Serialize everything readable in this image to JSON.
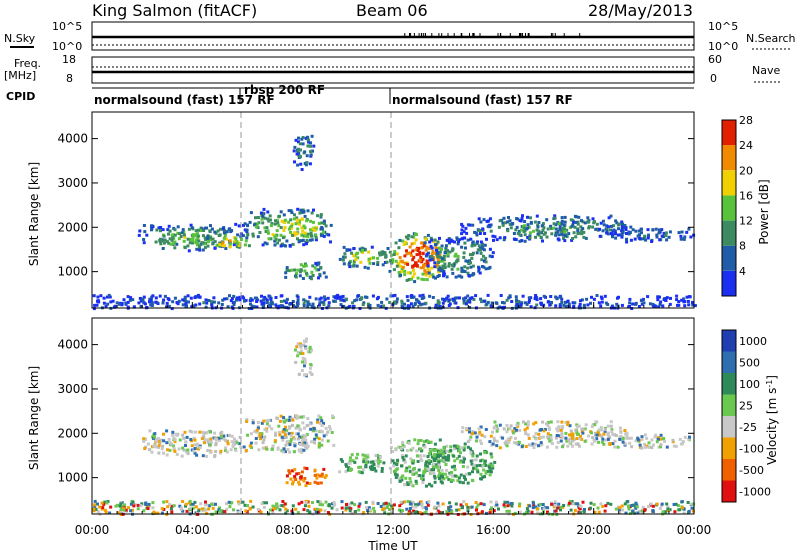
{
  "header": {
    "station": "King Salmon (fitACF)",
    "beam": "Beam 06",
    "date": "28/May/2013"
  },
  "strips": {
    "nsky_label": "N.Sky",
    "nsearch_label": "N.Search",
    "nsky_ticks": [
      "10^5",
      "10^0"
    ],
    "nsearch_ticks": [
      "10^5",
      "10^0"
    ],
    "freq_label": "Freq.",
    "freq_unit": "[MHz]",
    "freq_ticks": [
      "18",
      "8"
    ],
    "nave_label": "Nave",
    "nave_ticks": [
      "60",
      "0"
    ],
    "cpid_label": "CPID",
    "cpid_segments": [
      {
        "label": "normalsound (fast) 157 RF",
        "start_hour": 0.0
      },
      {
        "label": "rbsp 200 RF",
        "start_hour": 6.0
      },
      {
        "label": "normalsound (fast) 157 RF",
        "start_hour": 11.9
      }
    ]
  },
  "chart_data": [
    {
      "type": "heatmap",
      "panel": "power",
      "ylabel": "Slant Range [km]",
      "yticks": [
        1000,
        2000,
        3000,
        4000
      ],
      "ylim": [
        180,
        4600
      ],
      "xlim": [
        0,
        24
      ],
      "colorbar_label": "Power [dB]",
      "colorbar_ticks": [
        "4",
        "8",
        "12",
        "16",
        "20",
        "24",
        "28"
      ],
      "colors": [
        "#1b2ff0",
        "#1f5ca8",
        "#3c8a60",
        "#58c23a",
        "#f0d000",
        "#f08a00",
        "#e02000"
      ],
      "features": [
        {
          "hours": [
            1.8,
            6.0
          ],
          "range_km": [
            1500,
            2100
          ],
          "level": 0.4
        },
        {
          "hours": [
            4.3,
            6.4
          ],
          "range_km": [
            1550,
            1850
          ],
          "level": 0.65
        },
        {
          "hours": [
            6.0,
            9.6
          ],
          "range_km": [
            1600,
            2450
          ],
          "level": 0.5
        },
        {
          "hours": [
            8.0,
            8.8
          ],
          "range_km": [
            3300,
            4200
          ],
          "level": 0.25
        },
        {
          "hours": [
            7.6,
            9.3
          ],
          "range_km": [
            850,
            1250
          ],
          "level": 0.45
        },
        {
          "hours": [
            9.8,
            11.8
          ],
          "range_km": [
            1100,
            1600
          ],
          "level": 0.5
        },
        {
          "hours": [
            11.8,
            14.2
          ],
          "range_km": [
            800,
            1900
          ],
          "level": 0.85
        },
        {
          "hours": [
            13.2,
            16.0
          ],
          "range_km": [
            900,
            1800
          ],
          "level": 0.35
        },
        {
          "hours": [
            14.6,
            21.5
          ],
          "range_km": [
            1700,
            2300
          ],
          "level": 0.3
        },
        {
          "hours": [
            20.5,
            24.0
          ],
          "range_km": [
            1700,
            2000
          ],
          "level": 0.2
        },
        {
          "hours": [
            0.0,
            24.0
          ],
          "range_km": [
            200,
            500
          ],
          "level": 0.2
        }
      ]
    },
    {
      "type": "heatmap",
      "panel": "velocity",
      "ylabel": "Slant Range [km]",
      "yticks": [
        1000,
        2000,
        3000,
        4000
      ],
      "ylim": [
        180,
        4600
      ],
      "xlim": [
        0,
        24
      ],
      "xlabel": "Time UT",
      "xticks": [
        "00:00",
        "04:00",
        "08:00",
        "12:00",
        "16:00",
        "20:00",
        "00:00"
      ],
      "colorbar_label": "Velocity [m s^-1]",
      "colorbar_ticks": [
        "1000",
        "500",
        "100",
        "25",
        "-25",
        "-100",
        "-500",
        "-1000"
      ],
      "colors": [
        "#1f3fb0",
        "#2f6fb0",
        "#2f8a5a",
        "#6ac850",
        "#c8c8c8",
        "#f0a000",
        "#f06000",
        "#e01010"
      ],
      "features": [
        {
          "hours": [
            1.8,
            6.0
          ],
          "range_km": [
            1500,
            2100
          ],
          "class": "gray"
        },
        {
          "hours": [
            6.0,
            9.6
          ],
          "range_km": [
            1600,
            2450
          ],
          "class": "gray"
        },
        {
          "hours": [
            8.0,
            8.8
          ],
          "range_km": [
            3300,
            4200
          ],
          "class": "gray"
        },
        {
          "hours": [
            7.6,
            9.3
          ],
          "range_km": [
            850,
            1250
          ],
          "class": "orange"
        },
        {
          "hours": [
            9.8,
            11.8
          ],
          "range_km": [
            1100,
            1600
          ],
          "class": "green"
        },
        {
          "hours": [
            11.8,
            14.2
          ],
          "range_km": [
            800,
            1900
          ],
          "class": "green"
        },
        {
          "hours": [
            13.2,
            16.0
          ],
          "range_km": [
            900,
            1800
          ],
          "class": "green"
        },
        {
          "hours": [
            14.6,
            21.5
          ],
          "range_km": [
            1700,
            2300
          ],
          "class": "gray"
        },
        {
          "hours": [
            20.5,
            24.0
          ],
          "range_km": [
            1700,
            2000
          ],
          "class": "gray"
        },
        {
          "hours": [
            0.0,
            24.0
          ],
          "range_km": [
            200,
            500
          ],
          "class": "mixed"
        }
      ]
    }
  ]
}
